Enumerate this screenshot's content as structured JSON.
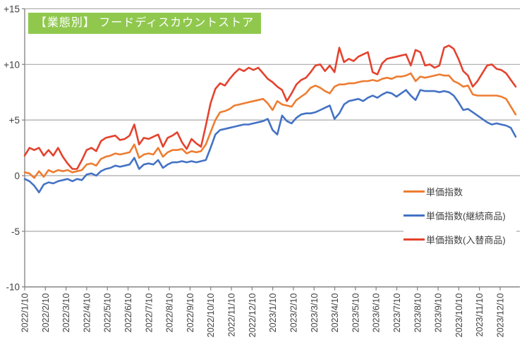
{
  "title": {
    "text": "【業態別】 フードディスカウントストア",
    "bg_color": "#90C84E",
    "text_color": "#FFFFFF"
  },
  "colors": {
    "grid": "#A9A9A9",
    "axis": "#808080",
    "tick_text": "#3F3F3F",
    "background": "#FFFFFF"
  },
  "chart_data": {
    "type": "line",
    "grid": true,
    "legend_position": "middle-right",
    "y_axis": {
      "ticks": [
        "+15",
        "+10",
        "+5",
        "0",
        "-5",
        "-10"
      ],
      "values": [
        15,
        10,
        5,
        0,
        -5,
        -10
      ],
      "ylim": [
        -10,
        15
      ]
    },
    "x_axis": {
      "tick_labels": [
        "2022/1/10",
        "2022/2/10",
        "2022/3/10",
        "2022/4/10",
        "2022/5/10",
        "2022/6/10",
        "2022/7/10",
        "2022/8/10",
        "2022/9/10",
        "2022/10/10",
        "2022/11/10",
        "2022/12/10",
        "2023/1/10",
        "2023/2/10",
        "2023/3/10",
        "2023/4/10",
        "2023/5/10",
        "2023/6/10",
        "2023/7/10",
        "2023/8/10",
        "2023/9/10",
        "2023/10/10",
        "2023/11/10",
        "2023/12/10"
      ],
      "label_rotation": -90
    },
    "x": [
      "2022/1/10",
      "2022/1/17",
      "2022/1/24",
      "2022/1/31",
      "2022/2/7",
      "2022/2/14",
      "2022/2/21",
      "2022/2/28",
      "2022/3/7",
      "2022/3/14",
      "2022/3/21",
      "2022/3/28",
      "2022/4/4",
      "2022/4/11",
      "2022/4/18",
      "2022/4/25",
      "2022/5/2",
      "2022/5/9",
      "2022/5/16",
      "2022/5/23",
      "2022/5/30",
      "2022/6/6",
      "2022/6/13",
      "2022/6/20",
      "2022/6/27",
      "2022/7/4",
      "2022/7/11",
      "2022/7/18",
      "2022/7/25",
      "2022/8/1",
      "2022/8/8",
      "2022/8/15",
      "2022/8/22",
      "2022/8/29",
      "2022/9/5",
      "2022/9/12",
      "2022/9/19",
      "2022/9/26",
      "2022/10/3",
      "2022/10/10",
      "2022/10/17",
      "2022/10/24",
      "2022/10/31",
      "2022/11/7",
      "2022/11/14",
      "2022/11/21",
      "2022/11/28",
      "2022/12/5",
      "2022/12/12",
      "2022/12/19",
      "2022/12/26",
      "2023/1/2",
      "2023/1/9",
      "2023/1/16",
      "2023/1/23",
      "2023/1/30",
      "2023/2/6",
      "2023/2/13",
      "2023/2/20",
      "2023/2/27",
      "2023/3/6",
      "2023/3/13",
      "2023/3/20",
      "2023/3/27",
      "2023/4/3",
      "2023/4/10",
      "2023/4/17",
      "2023/4/24",
      "2023/5/1",
      "2023/5/8",
      "2023/5/15",
      "2023/5/22",
      "2023/5/29",
      "2023/6/5",
      "2023/6/12",
      "2023/6/19",
      "2023/6/26",
      "2023/7/3",
      "2023/7/10",
      "2023/7/17",
      "2023/7/24",
      "2023/7/31",
      "2023/8/7",
      "2023/8/14",
      "2023/8/21",
      "2023/8/28",
      "2023/9/4",
      "2023/9/11",
      "2023/9/18",
      "2023/9/25",
      "2023/10/2",
      "2023/10/9",
      "2023/10/16",
      "2023/10/23",
      "2023/10/30",
      "2023/11/6",
      "2023/11/13",
      "2023/11/20",
      "2023/11/27",
      "2023/12/4",
      "2023/12/11",
      "2023/12/18",
      "2023/12/25",
      "2024/1/1"
    ],
    "series": [
      {
        "name": "単価指数",
        "color": "#ED7D31",
        "values": [
          0.3,
          0.2,
          -0.2,
          0.4,
          -0.1,
          0.5,
          0.3,
          0.5,
          0.4,
          0.5,
          0.3,
          0.4,
          0.5,
          1.0,
          1.1,
          0.9,
          1.5,
          1.7,
          1.8,
          2.0,
          1.9,
          2.0,
          2.1,
          2.8,
          1.6,
          1.9,
          2.0,
          1.9,
          2.5,
          1.7,
          2.1,
          2.3,
          2.3,
          2.4,
          2.0,
          2.2,
          2.1,
          2.2,
          2.8,
          3.9,
          5.0,
          5.7,
          5.8,
          6.0,
          6.3,
          6.4,
          6.5,
          6.6,
          6.7,
          6.8,
          6.9,
          6.5,
          5.9,
          6.7,
          6.4,
          6.3,
          6.2,
          6.8,
          7.1,
          7.4,
          7.9,
          8.1,
          7.9,
          7.6,
          7.4,
          8.0,
          8.2,
          8.2,
          8.3,
          8.3,
          8.4,
          8.5,
          8.5,
          8.6,
          8.5,
          8.7,
          8.8,
          8.7,
          8.9,
          8.9,
          9.0,
          9.2,
          8.5,
          8.9,
          8.8,
          8.9,
          9.0,
          9.1,
          9.0,
          9.0,
          8.5,
          8.3,
          8.0,
          8.1,
          7.3,
          7.2,
          7.2,
          7.2,
          7.2,
          7.2,
          7.1,
          6.9,
          6.2,
          5.5
        ]
      },
      {
        "name": "単価指数(継続商品)",
        "color": "#4472C4",
        "values": [
          -0.3,
          -0.5,
          -0.9,
          -1.5,
          -0.8,
          -0.6,
          -0.7,
          -0.5,
          -0.4,
          -0.3,
          -0.5,
          -0.3,
          -0.4,
          0.1,
          0.2,
          0.0,
          0.4,
          0.6,
          0.7,
          0.9,
          0.8,
          0.9,
          1.0,
          1.6,
          0.6,
          1.0,
          1.1,
          1.0,
          1.4,
          0.7,
          1.0,
          1.2,
          1.2,
          1.3,
          1.2,
          1.3,
          1.2,
          1.3,
          1.4,
          2.5,
          3.7,
          4.1,
          4.2,
          4.3,
          4.4,
          4.5,
          4.6,
          4.6,
          4.7,
          4.8,
          4.9,
          5.1,
          4.1,
          3.7,
          5.4,
          4.9,
          4.7,
          5.2,
          5.5,
          5.6,
          5.6,
          5.7,
          5.9,
          6.1,
          6.3,
          5.1,
          5.6,
          6.4,
          6.7,
          6.8,
          6.9,
          6.7,
          7.0,
          7.2,
          7.0,
          7.3,
          7.5,
          7.4,
          7.1,
          7.4,
          7.7,
          7.2,
          6.8,
          7.7,
          7.6,
          7.6,
          7.6,
          7.5,
          7.6,
          7.5,
          7.2,
          6.6,
          5.9,
          6.0,
          5.7,
          5.4,
          5.1,
          4.8,
          4.6,
          4.7,
          4.6,
          4.5,
          4.3,
          3.5
        ]
      },
      {
        "name": "単価指数(入替商品)",
        "color": "#E4422D",
        "values": [
          1.8,
          2.5,
          2.3,
          2.5,
          1.8,
          2.3,
          1.8,
          2.5,
          1.7,
          1.1,
          0.6,
          0.6,
          1.4,
          2.3,
          2.5,
          2.2,
          3.1,
          3.4,
          3.5,
          3.6,
          3.2,
          3.3,
          3.6,
          4.6,
          2.8,
          3.4,
          3.3,
          3.5,
          3.7,
          2.6,
          3.4,
          3.6,
          3.9,
          3.0,
          2.4,
          3.3,
          2.9,
          2.6,
          4.5,
          6.5,
          7.8,
          8.3,
          8.1,
          8.7,
          9.2,
          9.6,
          9.4,
          9.7,
          9.5,
          9.7,
          9.2,
          8.7,
          8.4,
          8.0,
          7.7,
          6.7,
          7.4,
          8.2,
          8.6,
          8.8,
          9.3,
          9.9,
          10.0,
          9.4,
          9.9,
          9.3,
          11.5,
          10.2,
          10.5,
          10.3,
          10.7,
          10.9,
          11.1,
          9.3,
          9.1,
          10.1,
          10.5,
          10.6,
          10.7,
          10.8,
          10.9,
          9.9,
          11.3,
          11.1,
          9.9,
          10.0,
          9.7,
          9.9,
          11.5,
          11.7,
          11.4,
          10.5,
          9.4,
          9.0,
          8.0,
          8.5,
          9.2,
          9.9,
          10.0,
          9.6,
          9.5,
          9.2,
          8.6,
          8.0
        ]
      }
    ]
  }
}
